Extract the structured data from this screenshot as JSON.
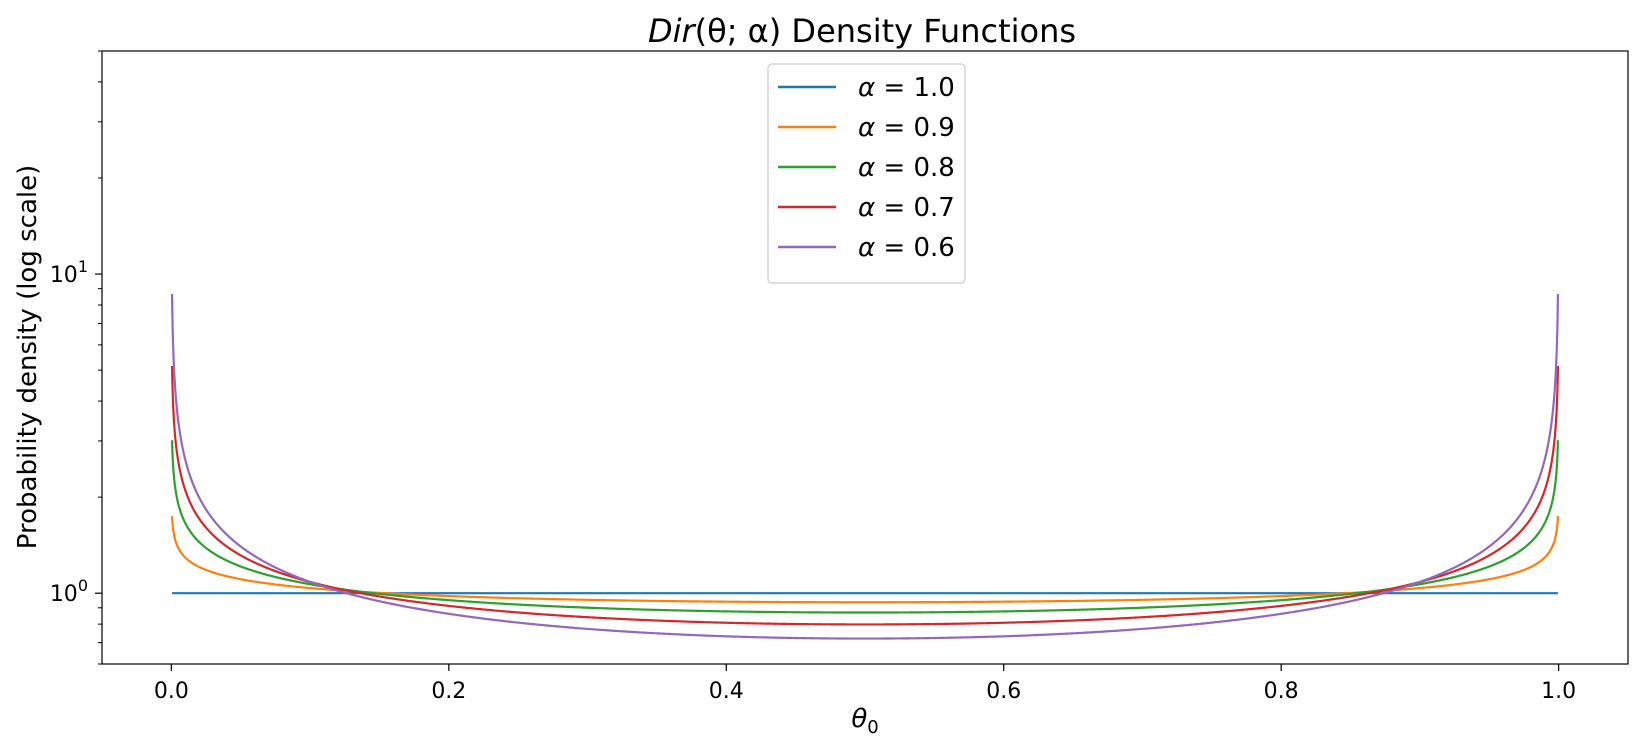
{
  "chart_data": {
    "type": "line",
    "title": {
      "prefix": "Dir",
      "args": "(θ; α)",
      "suffix": " Density Functions"
    },
    "xlabel": {
      "main": "θ",
      "sub": "0"
    },
    "ylabel": "Probability density (log scale)",
    "xlim": [
      -0.05,
      1.05
    ],
    "ylim": [
      0.6,
      50
    ],
    "yscale": "log",
    "xticks": [
      {
        "value": 0.0,
        "label": "0.0"
      },
      {
        "value": 0.2,
        "label": "0.2"
      },
      {
        "value": 0.4,
        "label": "0.4"
      },
      {
        "value": 0.6,
        "label": "0.6"
      },
      {
        "value": 0.8,
        "label": "0.8"
      },
      {
        "value": 1.0,
        "label": "1.0"
      }
    ],
    "yticks_major": [
      {
        "value": 1,
        "base": "10",
        "exp": "0"
      },
      {
        "value": 10,
        "base": "10",
        "exp": "1"
      }
    ],
    "yticks_minor": [
      0.6,
      0.7,
      0.8,
      0.9,
      2,
      3,
      4,
      5,
      6,
      7,
      8,
      9,
      20,
      30,
      40,
      50
    ],
    "grid": false,
    "legend_position": "top-center",
    "series": [
      {
        "name": "α = 1.0",
        "label_var": "α",
        "label_val": " = 1.0",
        "alpha": 1.0,
        "color": "#1f77b4"
      },
      {
        "name": "α = 0.9",
        "label_var": "α",
        "label_val": " = 0.9",
        "alpha": 0.9,
        "color": "#ff7f0e"
      },
      {
        "name": "α = 0.8",
        "label_var": "α",
        "label_val": " = 0.8",
        "alpha": 0.8,
        "color": "#2ca02c"
      },
      {
        "name": "α = 0.7",
        "label_var": "α",
        "label_val": " = 0.7",
        "alpha": 0.7,
        "color": "#d62728"
      },
      {
        "name": "α = 0.6",
        "label_var": "α",
        "label_val": " = 0.6",
        "alpha": 0.6,
        "color": "#9467bd"
      }
    ],
    "x_range": [
      0.0005,
      0.9995
    ]
  }
}
